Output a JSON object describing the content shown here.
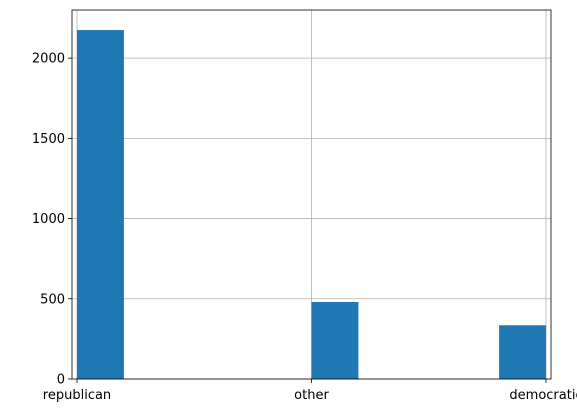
{
  "chart_data": {
    "type": "bar",
    "subtype": "histogram",
    "categories": [
      "republican",
      "other",
      "democratic"
    ],
    "values": [
      2175,
      480,
      335
    ],
    "bins": 10,
    "ylim": [
      0,
      2300
    ],
    "yticks": [
      0,
      500,
      1000,
      1500,
      2000
    ],
    "grid": true,
    "title": "",
    "xlabel": "",
    "ylabel": "",
    "colors": {
      "bar": "#1f77b4",
      "grid": "#b0b0b0",
      "axis": "#000000"
    }
  }
}
